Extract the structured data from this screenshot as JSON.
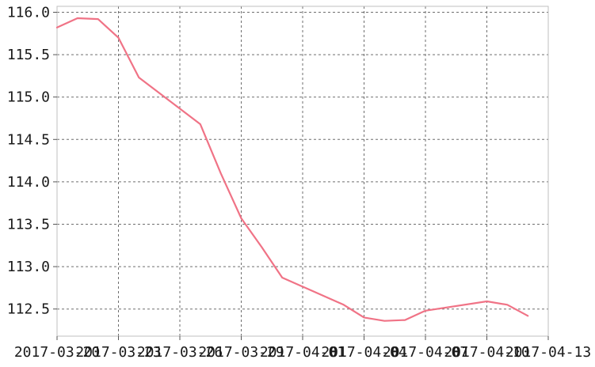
{
  "chart_data": {
    "type": "line",
    "title": "",
    "xlabel": "",
    "ylabel": "",
    "grid": true,
    "series": [
      {
        "color": "#f07386",
        "x": [
          "2017-03-20",
          "2017-03-21",
          "2017-03-22",
          "2017-03-23",
          "2017-03-24",
          "2017-03-27",
          "2017-03-28",
          "2017-03-29",
          "2017-03-30",
          "2017-03-31",
          "2017-04-03",
          "2017-04-04",
          "2017-04-05",
          "2017-04-06",
          "2017-04-07",
          "2017-04-10",
          "2017-04-11",
          "2017-04-12"
        ],
        "y": [
          115.82,
          115.93,
          115.92,
          115.7,
          115.23,
          114.68,
          114.1,
          113.57,
          113.23,
          112.87,
          112.55,
          112.4,
          112.36,
          112.37,
          112.48,
          112.59,
          112.55,
          112.42
        ]
      }
    ],
    "xlim": [
      "2017-03-20",
      "2017-04-13"
    ],
    "ylim": [
      112.18,
      116.07
    ],
    "x_ticks": [
      "2017-03-20",
      "2017-03-23",
      "2017-03-26",
      "2017-03-29",
      "2017-04-01",
      "2017-04-04",
      "2017-04-07",
      "2017-04-10",
      "2017-04-13"
    ],
    "x_tick_labels": [
      "2017-03-20",
      "2017-03-23",
      "2017-03-26",
      "2017-03-29",
      "2017-04-01",
      "2017-04-04",
      "2017-04-07",
      "2017-04-10",
      "2017-04-13"
    ],
    "y_ticks": [
      112.5,
      113.0,
      113.5,
      114.0,
      114.5,
      115.0,
      115.5,
      116.0
    ],
    "y_tick_labels": [
      "112.5",
      "113.0",
      "113.5",
      "114.0",
      "114.5",
      "115.0",
      "115.5",
      "116.0"
    ]
  }
}
